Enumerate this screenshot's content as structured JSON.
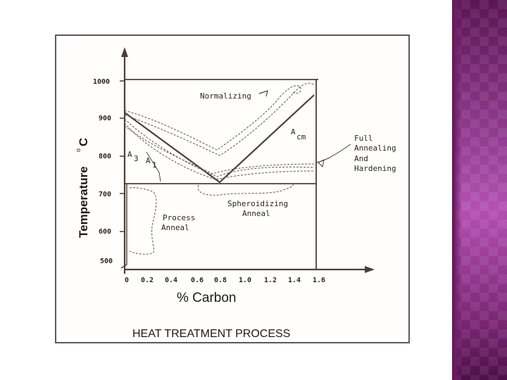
{
  "figure": {
    "title": "HEAT TREATMENT PROCESS",
    "y_axis_title": "Temperature",
    "y_axis_unit_degree": "o",
    "y_axis_unit": "C",
    "x_axis_title": "% Carbon",
    "y_ticks": [
      "1000",
      "900",
      "800",
      "700",
      "600",
      "500"
    ],
    "x_ticks": [
      "0",
      "0.2",
      "0.4",
      "0.6",
      "0.8",
      "1.0",
      "1.2",
      "1.4",
      "1.6"
    ],
    "lines": {
      "a3": {
        "main": "A",
        "sub": "3"
      },
      "a1": {
        "main": "A",
        "sub": "1"
      },
      "acm": {
        "main": "A",
        "sub": "cm"
      }
    },
    "regions": {
      "normalizing": "Normalizing",
      "spheroidizing_line1": "Spheroidizing",
      "spheroidizing_line2": "Anneal",
      "process_line1": "Process",
      "process_line2": "Anneal"
    }
  },
  "side_label": {
    "line1": "Full",
    "line2": "Annealing",
    "line3": "And",
    "line4": "Hardening"
  }
}
